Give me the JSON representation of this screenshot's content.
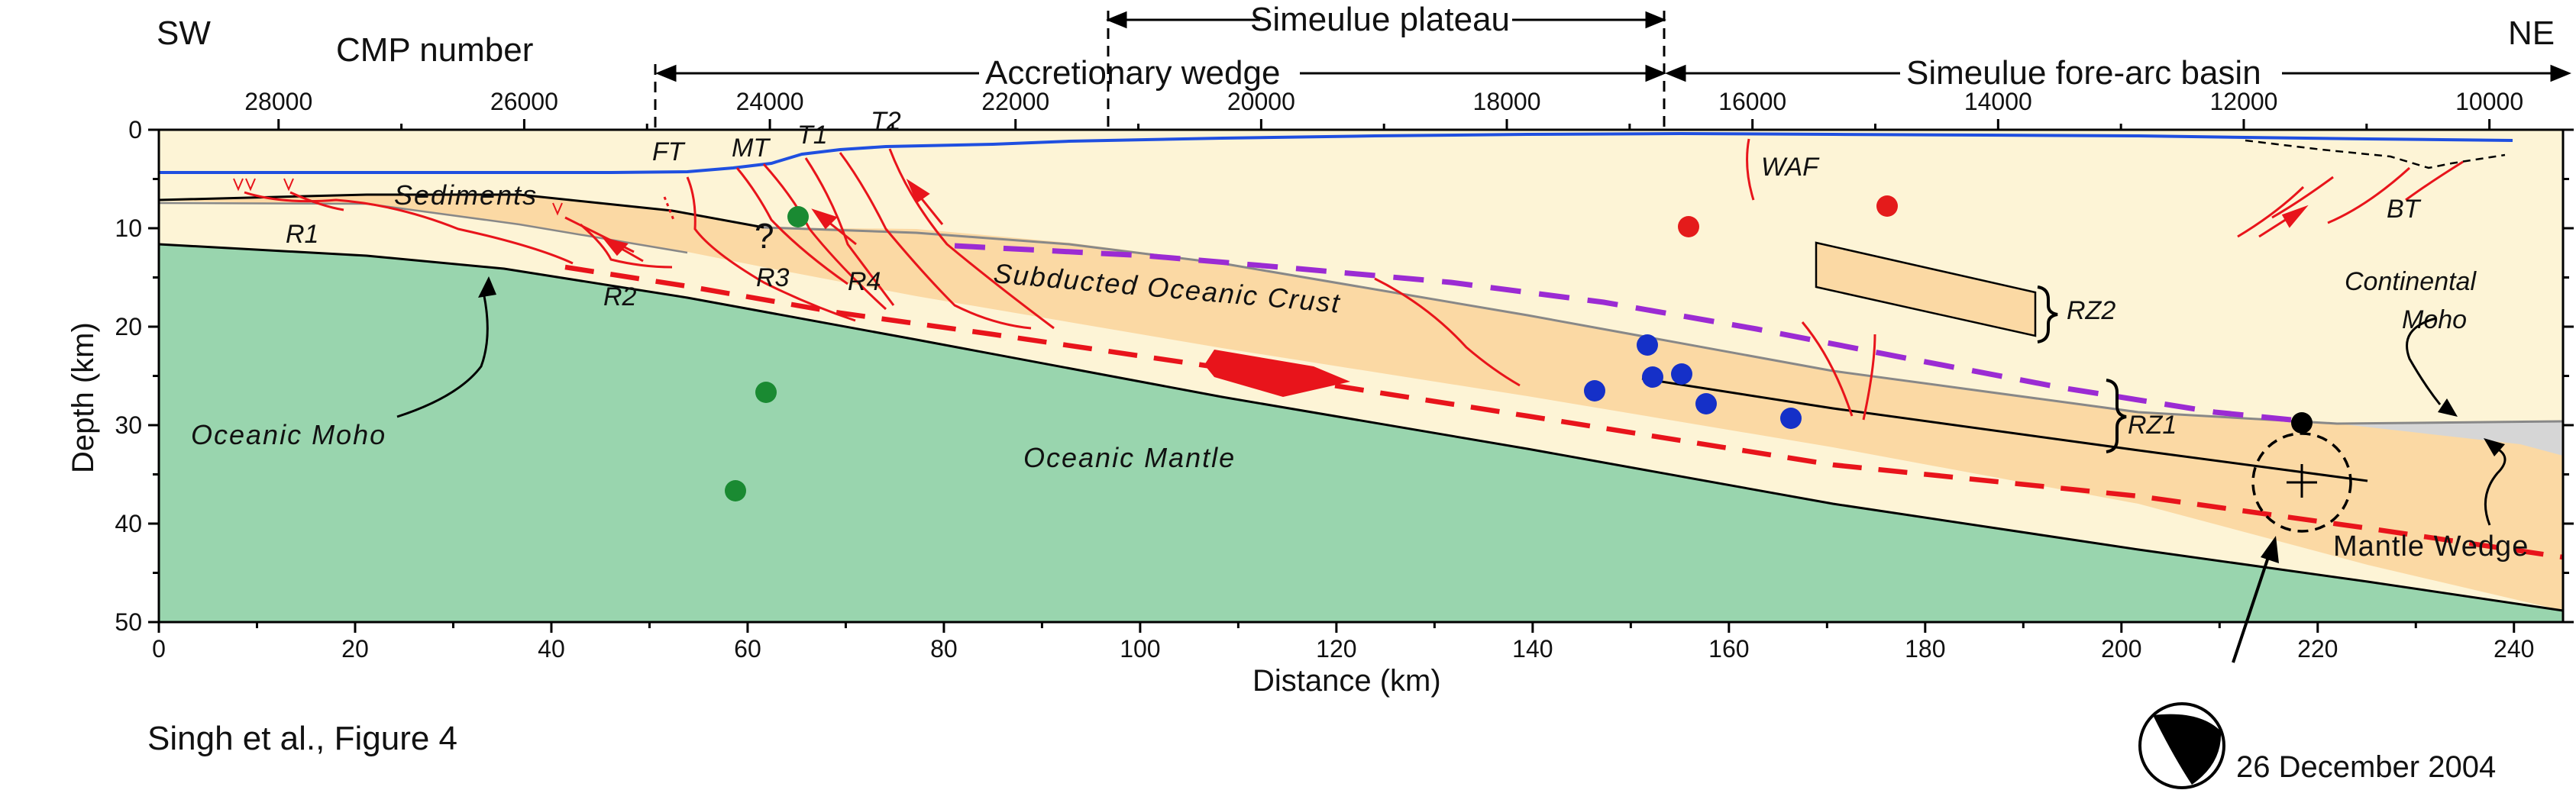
{
  "corner_left": "SW",
  "corner_right": "NE",
  "cmp_title": "CMP number",
  "cmp_ticks": [
    "28000",
    "26000",
    "24000",
    "22000",
    "20000",
    "18000",
    "16000",
    "14000",
    "12000",
    "10000"
  ],
  "spans": {
    "plateau": "Simeulue plateau",
    "wedge": "Accretionary wedge",
    "basin": "Simeulue fore-arc basin"
  },
  "x_ticks": [
    "0",
    "20",
    "40",
    "60",
    "80",
    "100",
    "120",
    "140",
    "160",
    "180",
    "200",
    "220",
    "240"
  ],
  "y_ticks": [
    "0",
    "10",
    "20",
    "30",
    "40",
    "50"
  ],
  "xlabel": "Distance (km)",
  "ylabel": "Depth (km)",
  "labels": {
    "ft": "FT",
    "mt": "MT",
    "t1": "T1",
    "t2": "T2",
    "waf": "WAF",
    "bt": "BT",
    "sediments": "Sediments",
    "r1": "R1",
    "r2": "R2",
    "r3": "R3",
    "r4": "R4",
    "question": "?",
    "crust": "Subducted Oceanic Crust",
    "rz2": "RZ2",
    "rz1": "RZ1",
    "continental_moho_1": "Continental",
    "continental_moho_2": "Moho",
    "oceanic_moho": "Oceanic Moho",
    "oceanic_mantle": "Oceanic Mantle",
    "mantle_wedge": "Mantle Wedge"
  },
  "caption": "Singh et al., Figure 4",
  "event_date": "26 December 2004",
  "colors": {
    "sediment": "#fdf4d6",
    "crust": "#fbd9a4",
    "mantle": "#99d5ae",
    "fault": "#e8141b",
    "seafloor": "#1f4fe0",
    "purple": "#9b2bd3",
    "green_dot": "#1a8a32",
    "red_dot": "#e41b1b",
    "blue_dot": "#1530c8"
  }
}
